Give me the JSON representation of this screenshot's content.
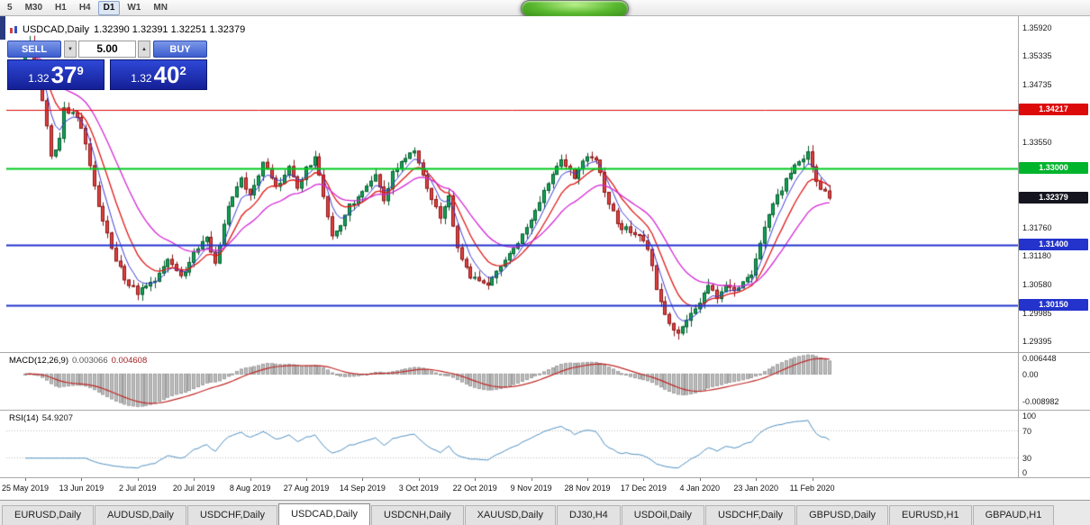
{
  "toolbar": {
    "timeframes": [
      {
        "label": "5",
        "active": false
      },
      {
        "label": "M30",
        "active": false
      },
      {
        "label": "H1",
        "active": false
      },
      {
        "label": "H4",
        "active": false
      },
      {
        "label": "D1",
        "active": true
      },
      {
        "label": "W1",
        "active": false
      },
      {
        "label": "MN",
        "active": false
      }
    ]
  },
  "chart": {
    "symbol_title": "USDCAD,Daily",
    "ohlc_text": "1.32390 1.32391 1.32251 1.32379"
  },
  "trade_panel": {
    "sell_label": "SELL",
    "buy_label": "BUY",
    "volume": "5.00",
    "sell_price": {
      "prefix": "1.32",
      "big": "37",
      "sup": "9"
    },
    "buy_price": {
      "prefix": "1.32",
      "big": "40",
      "sup": "2"
    }
  },
  "icons": {
    "volume_up": "▲",
    "volume_down": "▼"
  },
  "price_axis": {
    "labels": [
      "1.35920",
      "1.35335",
      "1.34735",
      "1.33550",
      "1.31760",
      "1.31180",
      "1.30580",
      "1.29985",
      "1.29395"
    ],
    "tags": [
      {
        "text": "1.34217",
        "price": 1.34217,
        "color": "#dd0a0a"
      },
      {
        "text": "1.33000",
        "price": 1.33,
        "color": "#00b42c"
      },
      {
        "text": "1.32379",
        "price": 1.32379,
        "color": "#14151f"
      },
      {
        "text": "1.31400",
        "price": 1.314,
        "color": "#2333cc"
      },
      {
        "text": "1.30150",
        "price": 1.3015,
        "color": "#2333cc"
      }
    ]
  },
  "macd_panel": {
    "label": "MACD(12,26,9)",
    "value_main": "0.003066",
    "value_signal": "0.004608",
    "axis_labels": [
      {
        "text": "0.006448",
        "value": 0.006448
      },
      {
        "text": "0.00",
        "value": 0
      },
      {
        "text": "-0.008982",
        "value": -0.008982
      }
    ]
  },
  "rsi_panel": {
    "label": "RSI(14)",
    "value": "54.9207",
    "axis_labels": [
      {
        "text": "100",
        "value": 100
      },
      {
        "text": "70",
        "value": 70
      },
      {
        "text": "30",
        "value": 30
      },
      {
        "text": "0",
        "value": 0
      }
    ]
  },
  "date_axis": {
    "labels": [
      "25 May 2019",
      "13 Jun 2019",
      "2 Jul 2019",
      "20 Jul 2019",
      "8 Aug 2019",
      "27 Aug 2019",
      "14 Sep 2019",
      "3 Oct 2019",
      "22 Oct 2019",
      "9 Nov 2019",
      "28 Nov 2019",
      "17 Dec 2019",
      "4 Jan 2020",
      "23 Jan 2020",
      "11 Feb 2020"
    ],
    "label_bars": [
      0,
      13,
      26,
      39,
      52,
      65,
      78,
      91,
      104,
      117,
      130,
      143,
      156,
      169,
      182
    ]
  },
  "tabs": [
    {
      "label": "EURUSD,Daily",
      "active": false
    },
    {
      "label": "AUDUSD,Daily",
      "active": false
    },
    {
      "label": "USDCHF,Daily",
      "active": false
    },
    {
      "label": "USDCAD,Daily",
      "active": true
    },
    {
      "label": "USDCNH,Daily",
      "active": false
    },
    {
      "label": "XAUUSD,Daily",
      "active": false
    },
    {
      "label": "DJ30,H4",
      "active": false
    },
    {
      "label": "USDOil,Daily",
      "active": false
    },
    {
      "label": "USDCHF,Daily",
      "active": false
    },
    {
      "label": "GBPUSD,Daily",
      "active": false
    },
    {
      "label": "EURUSD,H1",
      "active": false
    },
    {
      "label": "GBPAUD,H1",
      "active": false
    }
  ],
  "chart_data": {
    "type": "candlestick",
    "symbol": "USDCAD",
    "timeframe": "Daily",
    "bars": 187,
    "price_range": [
      1.2917,
      1.3613
    ],
    "last_close": 1.32379,
    "price_path": [
      [
        0,
        1.3535
      ],
      [
        1,
        1.3562
      ],
      [
        3,
        1.348
      ],
      [
        5,
        1.339
      ],
      [
        6,
        1.332
      ],
      [
        8,
        1.3365
      ],
      [
        9,
        1.3425
      ],
      [
        12,
        1.3408
      ],
      [
        14,
        1.335
      ],
      [
        17,
        1.3225
      ],
      [
        20,
        1.313
      ],
      [
        23,
        1.3072
      ],
      [
        26,
        1.3042
      ],
      [
        30,
        1.3068
      ],
      [
        33,
        1.311
      ],
      [
        36,
        1.307
      ],
      [
        39,
        1.3122
      ],
      [
        42,
        1.3155
      ],
      [
        44,
        1.31
      ],
      [
        47,
        1.322
      ],
      [
        50,
        1.3278
      ],
      [
        52,
        1.324
      ],
      [
        55,
        1.331
      ],
      [
        58,
        1.3262
      ],
      [
        61,
        1.33
      ],
      [
        63,
        1.3252
      ],
      [
        65,
        1.3298
      ],
      [
        67,
        1.3322
      ],
      [
        69,
        1.3242
      ],
      [
        71,
        1.3162
      ],
      [
        73,
        1.3178
      ],
      [
        75,
        1.322
      ],
      [
        78,
        1.3256
      ],
      [
        81,
        1.3282
      ],
      [
        83,
        1.3232
      ],
      [
        85,
        1.3292
      ],
      [
        88,
        1.3322
      ],
      [
        90,
        1.3342
      ],
      [
        93,
        1.3252
      ],
      [
        96,
        1.3202
      ],
      [
        98,
        1.3236
      ],
      [
        100,
        1.3132
      ],
      [
        103,
        1.3072
      ],
      [
        107,
        1.3056
      ],
      [
        110,
        1.3092
      ],
      [
        113,
        1.3132
      ],
      [
        116,
        1.3172
      ],
      [
        119,
        1.3232
      ],
      [
        122,
        1.3292
      ],
      [
        124,
        1.3322
      ],
      [
        127,
        1.3282
      ],
      [
        129,
        1.3316
      ],
      [
        132,
        1.3322
      ],
      [
        134,
        1.3252
      ],
      [
        137,
        1.3182
      ],
      [
        140,
        1.3172
      ],
      [
        142,
        1.3162
      ],
      [
        144,
        1.3132
      ],
      [
        146,
        1.3052
      ],
      [
        148,
        1.2992
      ],
      [
        151,
        1.2958
      ],
      [
        153,
        1.2982
      ],
      [
        155,
        1.3002
      ],
      [
        158,
        1.3052
      ],
      [
        160,
        1.3032
      ],
      [
        162,
        1.3062
      ],
      [
        164,
        1.3042
      ],
      [
        166,
        1.3062
      ],
      [
        168,
        1.3082
      ],
      [
        170,
        1.3142
      ],
      [
        172,
        1.3202
      ],
      [
        174,
        1.3242
      ],
      [
        176,
        1.3272
      ],
      [
        178,
        1.3302
      ],
      [
        181,
        1.3328
      ],
      [
        183,
        1.3272
      ],
      [
        185,
        1.3248
      ],
      [
        186,
        1.3238
      ]
    ],
    "horizontal_lines": [
      {
        "price": 1.34217,
        "color": "#dd0a0a",
        "width": 1
      },
      {
        "price": 1.33,
        "color": "#00c81e",
        "width": 2
      },
      {
        "price": 1.314,
        "color": "#2333cc",
        "width": 2
      },
      {
        "price": 1.3015,
        "color": "#2333cc",
        "width": 2
      }
    ],
    "moving_averages": [
      {
        "period": 5,
        "color": "#3b3bd6",
        "width": 1
      },
      {
        "period": 10,
        "color": "#e01818",
        "width": 1.3
      },
      {
        "period": 21,
        "color": "#d428d4",
        "width": 1.3
      }
    ],
    "macd": {
      "fast": 12,
      "slow": 26,
      "signal": 9,
      "histogram_color": "#bdbdbd",
      "histogram_edge": "#9e9e9e",
      "signal_color": "#c02828"
    },
    "rsi": {
      "period": 14,
      "color": "#4f8fc0",
      "levels": [
        70,
        30
      ]
    },
    "candle_colors": {
      "up_fill": "#14a356",
      "up_edge": "#035c2e",
      "down_fill": "#e04343",
      "down_edge": "#8a1414"
    }
  }
}
